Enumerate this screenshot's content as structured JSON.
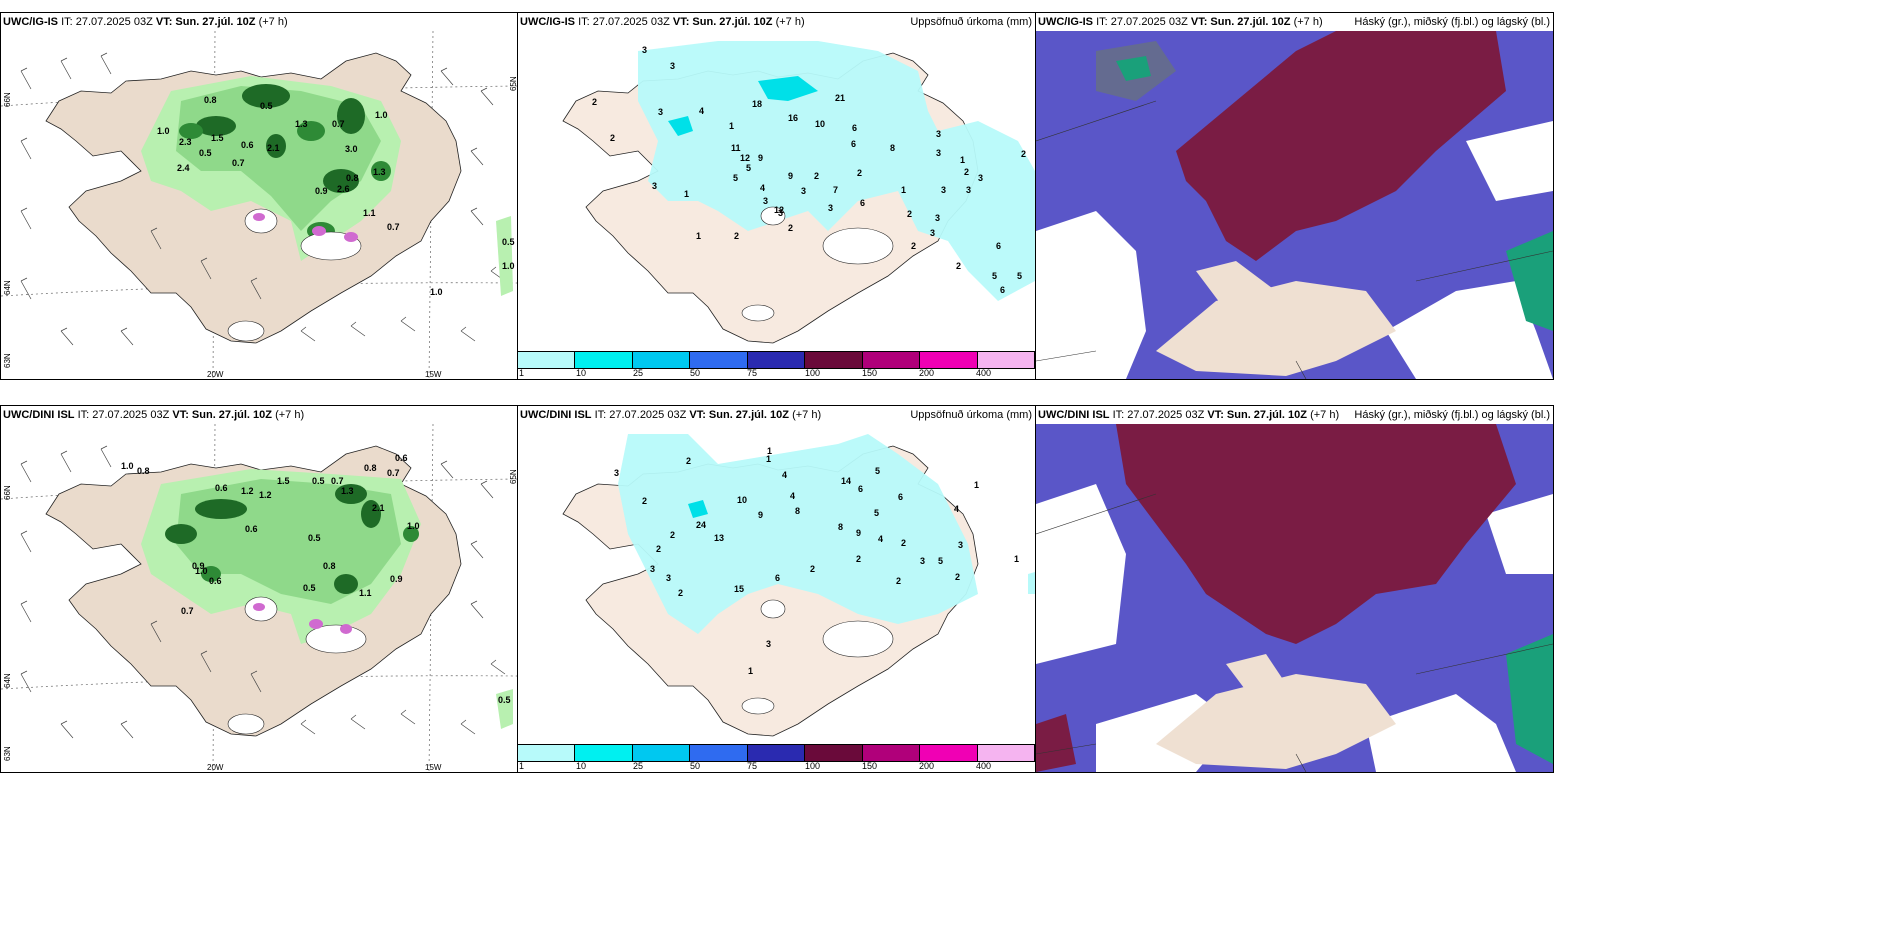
{
  "panels": {
    "top_left": {
      "model": "UWC/IG-IS",
      "it": "IT: 27.07.2025 03Z",
      "vt_label": "VT:",
      "vt": "Sun. 27.júl. 10Z",
      "lead": "(+7 h)",
      "title": ""
    },
    "top_mid": {
      "model": "UWC/IG-IS",
      "it": "IT: 27.07.2025 03Z",
      "vt_label": "VT:",
      "vt": "Sun. 27.júl. 10Z",
      "lead": "(+7 h)",
      "title": "Uppsöfnuð úrkoma (mm)"
    },
    "top_right": {
      "model": "UWC/IG-IS",
      "it": "IT: 27.07.2025 03Z",
      "vt_label": "VT:",
      "vt": "Sun. 27.júl. 10Z",
      "lead": "(+7 h)",
      "title": "Háský (gr.), miðský (fj.bl.) og lágský (bl.)"
    },
    "bot_left": {
      "model": "UWC/DINI ISL",
      "it": "IT: 27.07.2025 03Z",
      "vt_label": "VT:",
      "vt": "Sun. 27.júl. 10Z",
      "lead": "(+7 h)",
      "title": ""
    },
    "bot_mid": {
      "model": "UWC/DINI ISL",
      "it": "IT: 27.07.2025 03Z",
      "vt_label": "VT:",
      "vt": "Sun. 27.júl. 10Z",
      "lead": "(+7 h)",
      "title": "Uppsöfnuð úrkoma (mm)"
    },
    "bot_right": {
      "model": "UWC/DINI ISL",
      "it": "IT: 27.07.2025 03Z",
      "vt_label": "VT:",
      "vt": "Sun. 27.júl. 10Z",
      "lead": "(+7 h)",
      "title": "Háský (gr.), miðský (fj.bl.) og lágský (bl.)"
    }
  },
  "axes": {
    "lon_20": "20W",
    "lon_15": "15W",
    "lat_66": "66N",
    "lat_64": "64N",
    "lat_65": "65N",
    "lat_63": "63N"
  },
  "legend": {
    "labels": [
      "1",
      "10",
      "25",
      "50",
      "75",
      "100",
      "150",
      "200",
      "400"
    ],
    "colors": [
      "#b7fafa",
      "#00f0f0",
      "#00c8f0",
      "#2f6bf0",
      "#2a2ab0",
      "#6a0a3a",
      "#b0007a",
      "#f000b4",
      "#f5b4f0"
    ]
  },
  "precip_values_top": [
    "3",
    "3",
    "2",
    "2",
    "3",
    "4",
    "1",
    "18",
    "16",
    "21",
    "10",
    "11",
    "12",
    "4",
    "9",
    "6",
    "8",
    "3",
    "2",
    "2",
    "5",
    "5",
    "9",
    "3",
    "3",
    "2",
    "3",
    "1",
    "6",
    "3",
    "7",
    "12",
    "2",
    "2",
    "3",
    "6",
    "6",
    "3",
    "3",
    "2",
    "5",
    "5",
    "6",
    "1",
    "1",
    "3",
    "3",
    "2",
    "2",
    "2",
    "1",
    "3",
    "3"
  ],
  "precip_values_bot": [
    "2",
    "3",
    "2",
    "1",
    "4",
    "10",
    "9",
    "4",
    "8",
    "14",
    "6",
    "5",
    "24",
    "13",
    "2",
    "2",
    "3",
    "3",
    "15",
    "6",
    "2",
    "2",
    "4",
    "2",
    "3",
    "1",
    "8",
    "9",
    "3",
    "5",
    "6",
    "5",
    "4",
    "2",
    "2",
    "1",
    "1",
    "1",
    "3",
    "2"
  ],
  "rain_values_top": [
    "0.8",
    "0.5",
    "1.0",
    "2.3",
    "1.0",
    "0.7",
    "0.5",
    "1.3",
    "3.0",
    "0.6",
    "2.1",
    "0.9",
    "2.6",
    "1.1",
    "0.7",
    "0.5",
    "1.0",
    "2.4",
    "1.0",
    "0.8",
    "1.5",
    "1.3",
    "0.7"
  ],
  "rain_values_bot": [
    "1.0",
    "0.8",
    "0.6",
    "1.2",
    "1.5",
    "0.7",
    "0.5",
    "0.8",
    "0.6",
    "2.1",
    "1.0",
    "0.9",
    "0.5",
    "1.1",
    "0.7",
    "0.6",
    "0.8",
    "0.5",
    "1.0",
    "1.2",
    "0.9",
    "0.5",
    "0.7",
    "0.6",
    "1.3"
  ]
}
